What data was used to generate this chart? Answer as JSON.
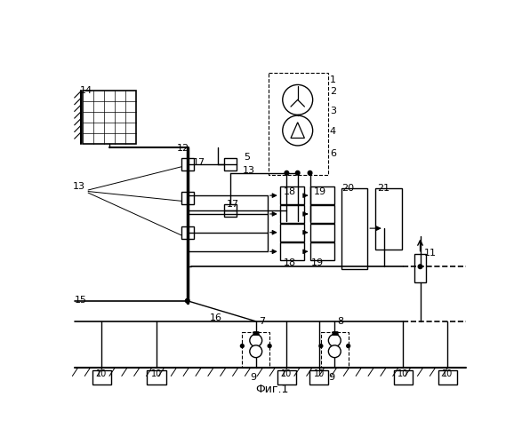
{
  "title": "Фиг.1",
  "bg_color": "#ffffff",
  "line_color": "#000000",
  "fig_width": 5.96,
  "fig_height": 5.0,
  "dpi": 100
}
